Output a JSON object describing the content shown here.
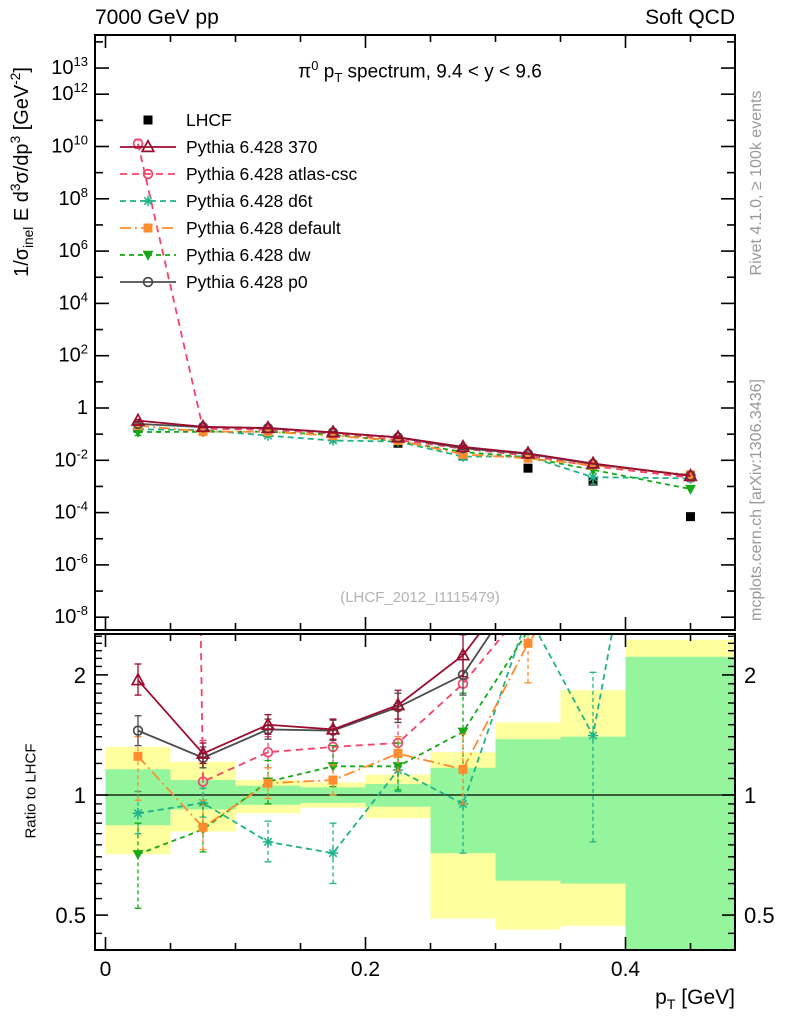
{
  "header": {
    "left": "7000 GeV pp",
    "right": "Soft QCD"
  },
  "titles": {
    "plot_title": "π^[0] p_[T] spectrum, 9.4 < y < 9.6",
    "x_axis": "p_[T] [GeV]",
    "y_axis_main": "1/σ_[inel] E d^[3]σ/dp^[3] [GeV^[-2]]",
    "y_axis_ratio": "Ratio to LHCF",
    "watermark": "(LHCF_2012_I1115479)",
    "side_top": "Rivet 4.1.0, ≥ 100k events",
    "side_bottom": "mcplots.cern.ch [arXiv:1306.3436]"
  },
  "colors": {
    "lhcf": "#000000",
    "p370": "#9b0c2e",
    "atlas_csc": "#f4436a",
    "d6t": "#21b38a",
    "default": "#ff8c2e",
    "dw": "#16a816",
    "p0": "#4d4d4d",
    "band_yellow": "#feff9e",
    "band_green": "#94f59c",
    "side_text": "#999999",
    "watermark": "#b3b3b3"
  },
  "chart_data": {
    "type": "line",
    "title": "π0 pT spectrum, 9.4 < y < 9.6",
    "xlabel": "pT [GeV]",
    "ylabel_main": "1/σ_inel E d³σ/dp³ [GeV⁻²]",
    "ylabel_ratio": "Ratio to LHCF",
    "x_axis": {
      "range": [
        -0.008,
        0.4845
      ],
      "major_ticks": [
        0,
        0.2,
        0.4
      ],
      "tick_labels": [
        "0",
        "0.2",
        "0.4"
      ],
      "minor_step": 0.05
    },
    "y_axis_main": {
      "scale": "log",
      "log_range": [
        -8.49,
        14.26
      ],
      "labeled_exponents": [
        13,
        12,
        10,
        8,
        6,
        4,
        2,
        0,
        -2,
        -4,
        -6,
        -8
      ]
    },
    "y_axis_ratio": {
      "scale": "log",
      "range": [
        0.409,
        2.56
      ],
      "labeled_ticks": [
        2,
        1,
        0.5
      ],
      "tick_labels": [
        "2",
        "1",
        "0.5"
      ],
      "reference_line": 1
    },
    "bin_centers": [
      0.025,
      0.075,
      0.125,
      0.175,
      0.225,
      0.275,
      0.325,
      0.375,
      0.45
    ],
    "lhcf": {
      "label": "LHCF",
      "marker": "square-filled",
      "spectrum": [
        0.17,
        0.15,
        0.115,
        0.08,
        0.045,
        0.0145,
        0.005,
        0.0016,
        7e-05
      ],
      "spectrum_err": [
        null,
        null,
        null,
        null,
        null,
        null,
        null,
        [
          0.0013,
          0.00195
        ],
        [
          5.5e-05,
          9.2e-05
        ]
      ]
    },
    "series": [
      {
        "id": "p370",
        "label": "Pythia 6.428 370",
        "color": "#9b0c2e",
        "dash": null,
        "marker": "triangle-up-open",
        "ratio": [
          1.94,
          1.27,
          1.5,
          1.46,
          1.68,
          2.24,
          3.67,
          4.7,
          36
        ],
        "ratio_err": [
          [
            1.78,
            2.13
          ],
          [
            1.2,
            1.35
          ],
          [
            1.42,
            1.59
          ],
          [
            1.38,
            1.55
          ],
          [
            1.55,
            1.83
          ],
          [
            1.98,
            2.52
          ],
          null,
          null,
          null
        ]
      },
      {
        "id": "atlas_csc",
        "label": "Pythia 6.428 atlas-csc",
        "color": "#f4436a",
        "dash": "7,5",
        "marker": "circle-open",
        "ratio": [
          76000000000,
          1.08,
          1.28,
          1.32,
          1.35,
          1.9,
          3.0,
          3.75,
          31
        ],
        "ratio_err": [
          [
            50000000000,
            110000000000
          ],
          [
            0.95,
            1.37
          ],
          [
            1.17,
            1.4
          ],
          [
            1.2,
            1.45
          ],
          [
            1.2,
            1.52
          ],
          null,
          null,
          null,
          null
        ]
      },
      {
        "id": "d6t",
        "label": "Pythia 6.428 d6t",
        "color": "#21b38a",
        "dash": "6,4",
        "marker": "star",
        "ratio": [
          0.9,
          0.955,
          0.763,
          0.715,
          1.155,
          0.95,
          2.83,
          1.41,
          29
        ],
        "ratio_err": [
          [
            0.8,
            1.02
          ],
          [
            0.88,
            1.04
          ],
          [
            0.68,
            0.86
          ],
          [
            0.6,
            0.85
          ],
          [
            1.02,
            1.3
          ],
          [
            0.715,
            1.155
          ],
          null,
          [
            0.763,
            2.03
          ],
          null
        ]
      },
      {
        "id": "default",
        "label": "Pythia 6.428 default",
        "color": "#ff8c2e",
        "dash": "11,4,2,4",
        "marker": "square-filled",
        "ratio": [
          1.25,
          0.83,
          1.07,
          1.09,
          1.27,
          1.16,
          2.4,
          4.06,
          40
        ],
        "ratio_err": [
          [
            0.97,
            1.4
          ],
          [
            0.73,
            0.97
          ],
          [
            0.98,
            1.17
          ],
          [
            1.0,
            1.19
          ],
          [
            1.15,
            1.4
          ],
          [
            0.95,
            1.42
          ],
          [
            1.91,
            2.95
          ],
          null,
          null
        ]
      },
      {
        "id": "dw",
        "label": "Pythia 6.428 dw",
        "color": "#16a816",
        "dash": "5,4",
        "marker": "triangle-down-filled",
        "ratio": [
          0.71,
          0.82,
          1.08,
          1.18,
          1.18,
          1.44,
          2.58,
          2.7,
          11.4
        ],
        "ratio_err": [
          [
            0.52,
            0.85
          ],
          [
            0.72,
            0.95
          ],
          [
            0.95,
            1.22
          ],
          [
            1.05,
            1.33
          ],
          [
            1.03,
            1.35
          ],
          [
            1.15,
            1.8
          ],
          null,
          null,
          null
        ]
      },
      {
        "id": "p0",
        "label": "Pythia 6.428 p0",
        "color": "#4d4d4d",
        "dash": null,
        "marker": "circle-open",
        "ratio": [
          1.45,
          1.24,
          1.46,
          1.45,
          1.66,
          2.0,
          3.5,
          4.5,
          37
        ],
        "ratio_err": [
          [
            1.33,
            1.58
          ],
          [
            1.17,
            1.32
          ],
          [
            1.38,
            1.55
          ],
          [
            1.37,
            1.54
          ],
          [
            1.52,
            1.8
          ],
          [
            1.78,
            2.25
          ],
          null,
          null,
          null
        ]
      }
    ],
    "legend_order": [
      "lhcf",
      "p370",
      "atlas_csc",
      "d6t",
      "default",
      "dw",
      "p0"
    ],
    "bands": [
      {
        "x": [
          0.0,
          0.05
        ],
        "yellow": [
          0.71,
          1.32
        ],
        "green": [
          0.84,
          1.16
        ]
      },
      {
        "x": [
          0.05,
          0.1
        ],
        "yellow": [
          0.81,
          1.21
        ],
        "green": [
          0.92,
          1.09
        ]
      },
      {
        "x": [
          0.1,
          0.15
        ],
        "yellow": [
          0.9,
          1.09
        ],
        "green": [
          0.945,
          1.055
        ]
      },
      {
        "x": [
          0.15,
          0.2
        ],
        "yellow": [
          0.93,
          1.075
        ],
        "green": [
          0.955,
          1.045
        ]
      },
      {
        "x": [
          0.2,
          0.25
        ],
        "yellow": [
          0.875,
          1.125
        ],
        "green": [
          0.935,
          1.065
        ]
      },
      {
        "x": [
          0.25,
          0.3
        ],
        "yellow": [
          0.49,
          1.28
        ],
        "green": [
          0.715,
          1.17
        ]
      },
      {
        "x": [
          0.3,
          0.35
        ],
        "yellow": [
          0.46,
          1.52
        ],
        "green": [
          0.61,
          1.38
        ]
      },
      {
        "x": [
          0.35,
          0.4
        ],
        "yellow": [
          0.47,
          1.83
        ],
        "green": [
          0.6,
          1.4
        ]
      },
      {
        "x": [
          0.4,
          0.4845
        ],
        "yellow": [
          0.39,
          2.45
        ],
        "green": [
          0.4,
          2.22
        ]
      }
    ]
  }
}
